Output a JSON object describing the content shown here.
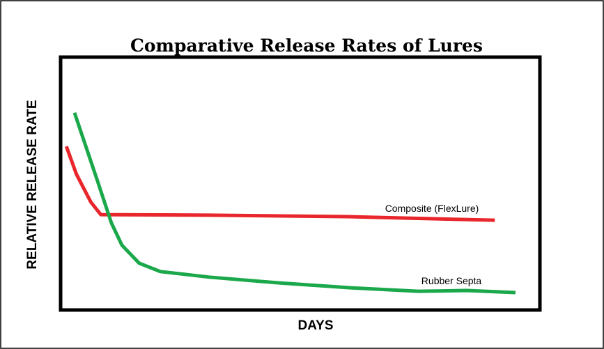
{
  "chart_data": {
    "type": "line",
    "title": "Comparative Release Rates of Lures",
    "x_label": "DAYS",
    "y_label": "RELATIVE RELEASE RATE",
    "xlim": [
      0,
      100
    ],
    "ylim": [
      0,
      100
    ],
    "series": [
      {
        "name": "Composite (FlexLure)",
        "color": "#e8262b",
        "x": [
          1.2,
          3.3,
          6.3,
          8.4,
          31,
          60,
          90.6
        ],
        "values": [
          64.7,
          53.7,
          42.7,
          37.7,
          37.5,
          36.9,
          35.5
        ]
      },
      {
        "name": "Rubber Septa",
        "color": "#1aa84b",
        "x": [
          2.9,
          7.7,
          10.6,
          12.8,
          16.4,
          20.8,
          31,
          45.6,
          60.2,
          74.6,
          84.7,
          94.9
        ],
        "values": [
          78,
          51,
          34.4,
          25.6,
          18.5,
          15.2,
          13,
          10.7,
          8.8,
          7.4,
          7.7,
          6.9
        ]
      }
    ]
  }
}
